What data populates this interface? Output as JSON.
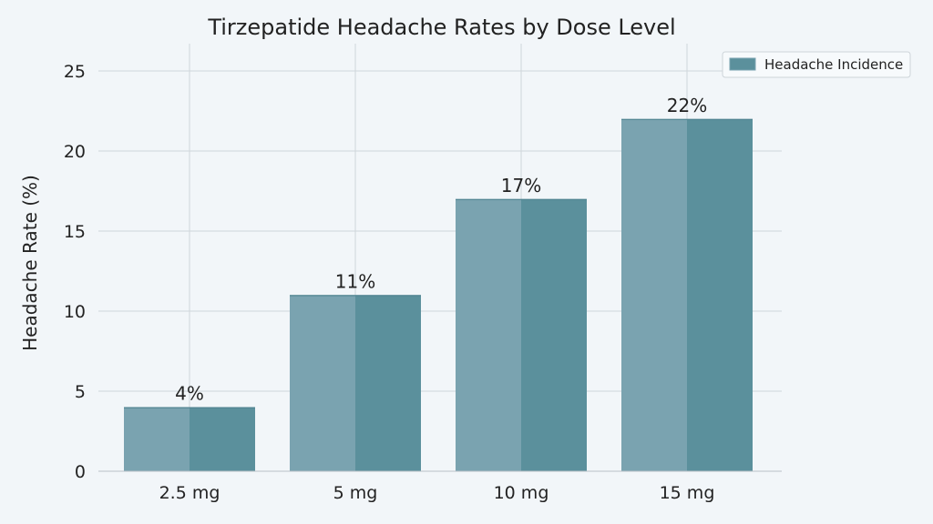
{
  "chart_data": {
    "type": "bar",
    "title": "Tirzepatide Headache Rates by Dose Level",
    "xlabel": "",
    "ylabel": "Headache Rate (%)",
    "categories": [
      "2.5 mg",
      "5 mg",
      "10 mg",
      "15 mg"
    ],
    "series": [
      {
        "name": "Headache Incidence",
        "values": [
          4,
          11,
          17,
          22
        ]
      }
    ],
    "data_labels": [
      "4%",
      "11%",
      "17%",
      "22%"
    ],
    "ylim": [
      0,
      26
    ],
    "yticks": [
      0,
      5,
      10,
      15,
      20,
      25
    ],
    "grid": true,
    "legend_position": "top-right",
    "colors": {
      "bar_light": "#7aa3b0",
      "bar_dark": "#5b909c",
      "grid": "#cfd6db",
      "axis": "#b8c0c6",
      "background": "#f2f6f9",
      "text": "#222222"
    }
  }
}
